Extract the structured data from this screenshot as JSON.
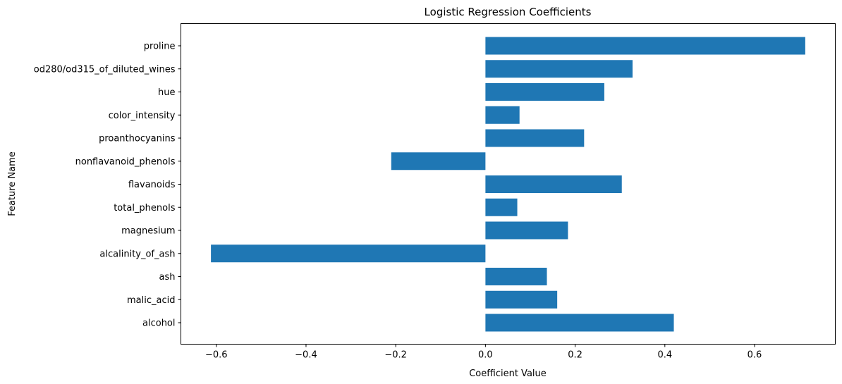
{
  "chart_data": {
    "type": "bar",
    "orientation": "horizontal",
    "title": "Logistic Regression Coefficients",
    "xlabel": "Coefficient Value",
    "ylabel": "Feature Name",
    "categories": [
      "alcohol",
      "malic_acid",
      "ash",
      "alcalinity_of_ash",
      "magnesium",
      "total_phenols",
      "flavanoids",
      "nonflavanoid_phenols",
      "proanthocyanins",
      "color_intensity",
      "hue",
      "od280/od315_of_diluted_wines",
      "proline"
    ],
    "values": [
      0.42,
      0.16,
      0.137,
      -0.612,
      0.184,
      0.071,
      0.304,
      -0.21,
      0.22,
      0.076,
      0.265,
      0.328,
      0.713
    ],
    "xlim": [
      -0.679,
      0.78
    ],
    "xticks": [
      -0.6,
      -0.4,
      -0.2,
      0.0,
      0.2,
      0.4,
      0.6
    ],
    "xtick_labels": [
      "−0.6",
      "−0.4",
      "−0.2",
      "0.0",
      "0.2",
      "0.4",
      "0.6"
    ],
    "bar_color": "#1f77b4",
    "grid": false,
    "legend": false
  }
}
